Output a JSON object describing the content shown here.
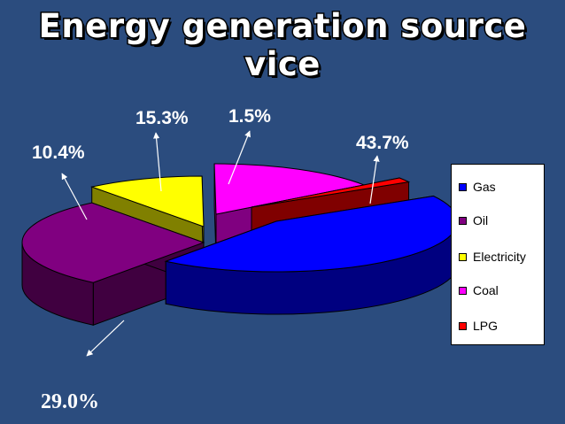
{
  "chart_data": {
    "type": "pie",
    "title": "Energy generation source vice",
    "categories": [
      "Gas",
      "Oil",
      "Electricity",
      "Coal",
      "LPG"
    ],
    "values": [
      43.7,
      29.0,
      10.4,
      15.3,
      1.5
    ],
    "labels": [
      "43.7%",
      "29.0%",
      "10.4%",
      "15.3%",
      "1.5%"
    ],
    "colors": [
      "#0000FF",
      "#800080",
      "#FFFF00",
      "#FF00FF",
      "#FF0000"
    ],
    "legend_position": "right",
    "exploded": true,
    "three_d": true
  },
  "legend": {
    "items": [
      {
        "label": "Gas",
        "color": "#0000FF"
      },
      {
        "label": "Oil",
        "color": "#800080"
      },
      {
        "label": "Electricity",
        "color": "#FFFF00"
      },
      {
        "label": "Coal",
        "color": "#FF00FF"
      },
      {
        "label": "LPG",
        "color": "#FF0000"
      }
    ]
  }
}
